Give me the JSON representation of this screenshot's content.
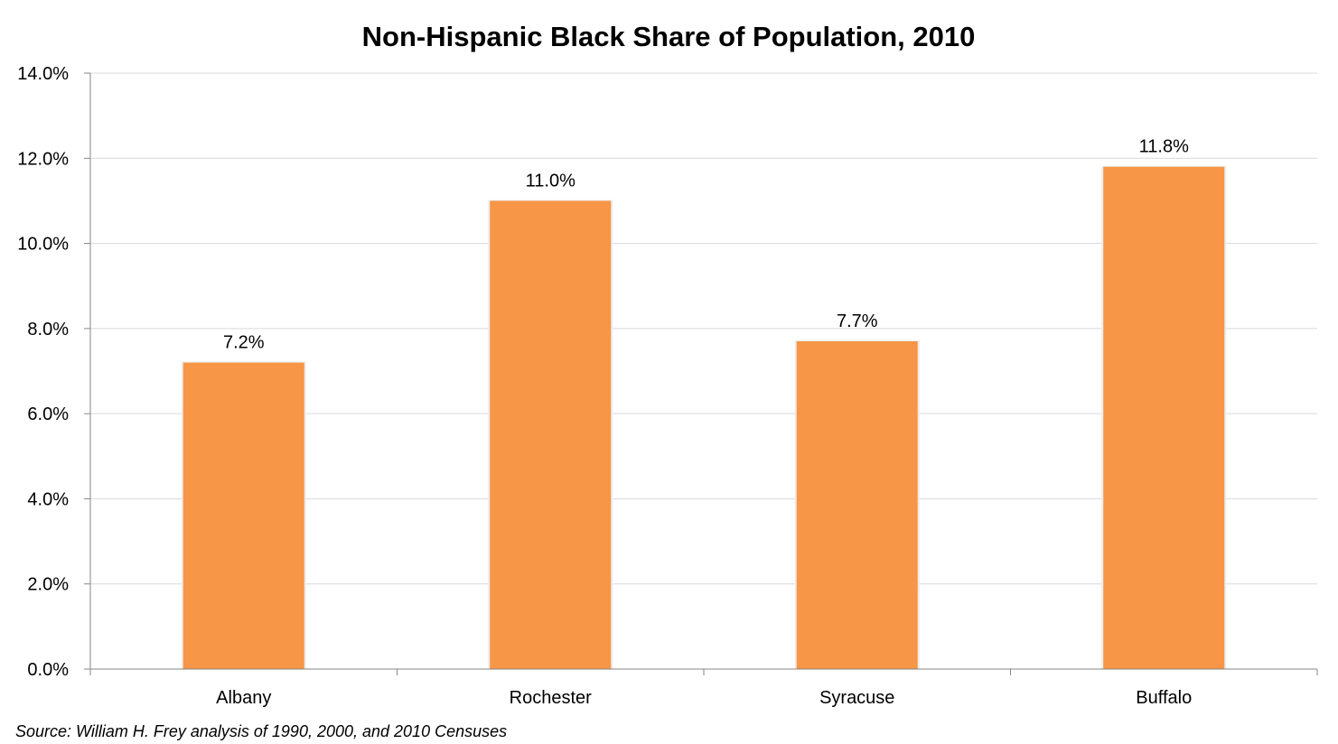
{
  "chart_data": {
    "type": "bar",
    "title": "Non-Hispanic Black Share of Population, 2010",
    "categories": [
      "Albany",
      "Rochester",
      "Syracuse",
      "Buffalo"
    ],
    "values": [
      7.2,
      11.0,
      7.7,
      11.8
    ],
    "value_labels": [
      "7.2%",
      "11.0%",
      "7.7%",
      "11.8%"
    ],
    "ylim": [
      0,
      14
    ],
    "yticks": [
      0,
      2,
      4,
      6,
      8,
      10,
      12,
      14
    ],
    "ytick_labels": [
      "0.0%",
      "2.0%",
      "4.0%",
      "6.0%",
      "8.0%",
      "10.0%",
      "12.0%",
      "14.0%"
    ],
    "xlabel": "",
    "ylabel": "",
    "grid": true,
    "legend": "none",
    "bar_color": "#f79646",
    "gridline_color": "#d9d9d9",
    "axis_color": "#868686"
  },
  "source": "Source: William H. Frey analysis of 1990, 2000, and 2010 Censuses"
}
